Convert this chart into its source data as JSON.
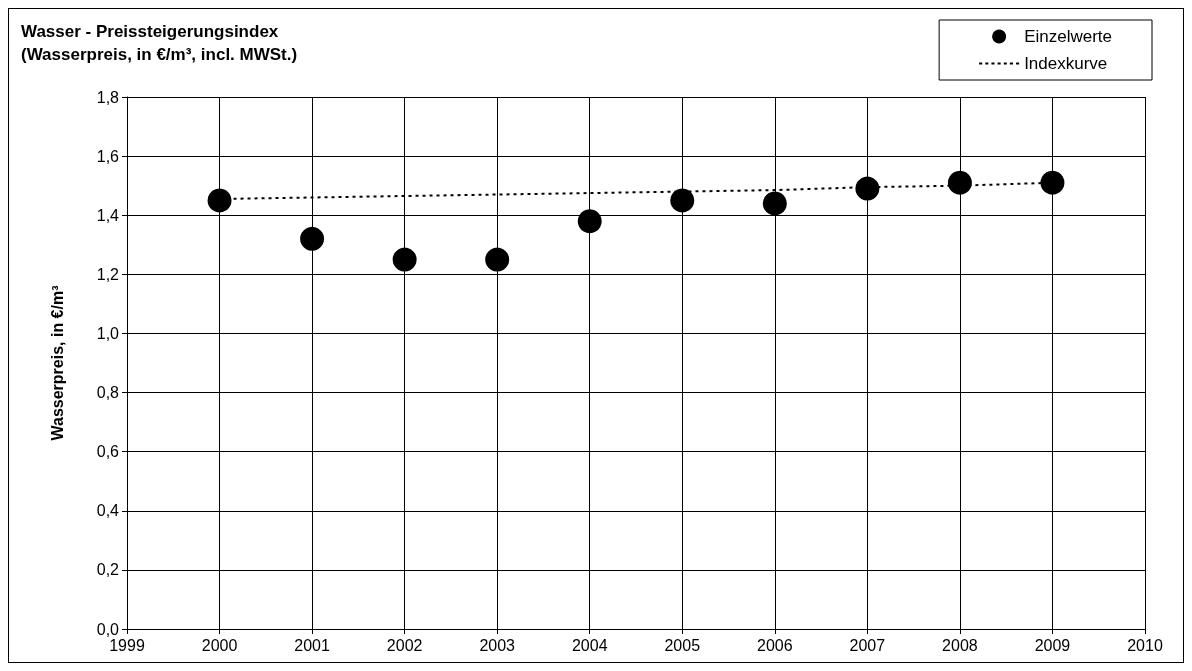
{
  "chart_data": {
    "type": "scatter",
    "title": "Wasser - Preissteigerungsindex",
    "subtitle": "(Wasserpreis, in €/m³, incl. MWSt.)",
    "ylabel": "Wasserpreis, in €/m³",
    "x": [
      2000,
      2001,
      2002,
      2003,
      2004,
      2005,
      2006,
      2007,
      2008,
      2009
    ],
    "series": [
      {
        "name": "Einzelwerte",
        "color": "#000000",
        "marker": "circle",
        "values": [
          1.45,
          1.32,
          1.25,
          1.25,
          1.38,
          1.45,
          1.44,
          1.49,
          1.51,
          1.51
        ]
      },
      {
        "name": "Indexkurve",
        "type": "line",
        "color": "#000000",
        "marker": "none",
        "line_style": "dotted",
        "values": [
          1.455,
          1.46,
          1.465,
          1.47,
          1.475,
          1.48,
          1.485,
          1.495,
          1.5,
          1.51
        ]
      }
    ],
    "xlim": [
      1999,
      2010
    ],
    "xticks": [
      1999,
      2000,
      2001,
      2002,
      2003,
      2004,
      2005,
      2006,
      2007,
      2008,
      2009,
      2010
    ],
    "ylim": [
      0,
      1.8
    ],
    "yticks": [
      {
        "value": 0,
        "label": "0,0"
      },
      {
        "value": 0.2,
        "label": "0,2"
      },
      {
        "value": 0.4,
        "label": "0,4"
      },
      {
        "value": 0.6,
        "label": "0,6"
      },
      {
        "value": 0.8,
        "label": "0,8"
      },
      {
        "value": 1.0,
        "label": "1,0"
      },
      {
        "value": 1.2,
        "label": "1,2"
      },
      {
        "value": 1.4,
        "label": "1,4"
      },
      {
        "value": 1.6,
        "label": "1,6"
      },
      {
        "value": 1.8,
        "label": "1,8"
      }
    ],
    "grid": true,
    "legend": "top right"
  }
}
